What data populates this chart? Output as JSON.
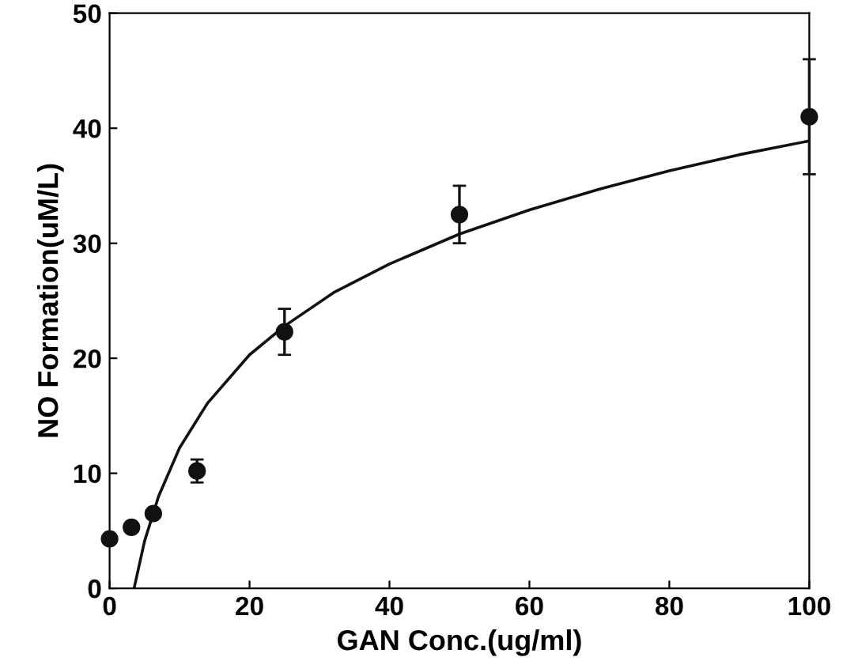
{
  "chart_data": {
    "type": "scatter",
    "xlabel": "GAN Conc.(ug/ml)",
    "ylabel": "NO Formation(uM/L)",
    "xlim": [
      0,
      100
    ],
    "ylim": [
      0,
      50
    ],
    "xticks": [
      0,
      20,
      40,
      60,
      80,
      100
    ],
    "yticks": [
      0,
      10,
      20,
      30,
      40,
      50
    ],
    "grid": false,
    "series": [
      {
        "marker": "circle",
        "color": "#111111",
        "x": [
          0,
          3.125,
          6.25,
          12.5,
          25,
          50,
          100
        ],
        "values": [
          4.3,
          5.3,
          6.5,
          10.2,
          22.3,
          32.5,
          41
        ],
        "errors": [
          null,
          null,
          null,
          1,
          2,
          2.5,
          5
        ]
      },
      {
        "type": "line",
        "color": "#111111",
        "marker": "none",
        "x": [
          3.5,
          5,
          7,
          10,
          14,
          20,
          25,
          32,
          40,
          50,
          60,
          70,
          80,
          90,
          100
        ],
        "values": [
          0,
          4.1,
          8,
          12.2,
          16.1,
          20.3,
          22.8,
          25.7,
          28.2,
          30.8,
          32.9,
          34.7,
          36.3,
          37.7,
          38.9
        ]
      }
    ]
  }
}
